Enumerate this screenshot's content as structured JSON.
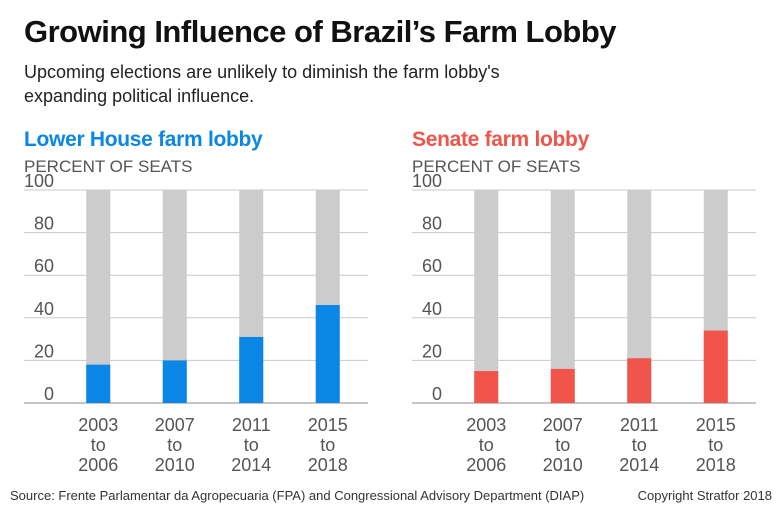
{
  "header": {
    "title": "Growing Influence of Brazil’s Farm Lobby",
    "subtitle": "Upcoming elections are unlikely to diminish the farm lobby's expanding political influence."
  },
  "chart_data": [
    {
      "type": "bar",
      "title": "Lower House farm lobby",
      "ylabel": "PERCENT OF SEATS",
      "categories": [
        [
          "2003",
          "to",
          "2006"
        ],
        [
          "2007",
          "to",
          "2010"
        ],
        [
          "2011",
          "to",
          "2014"
        ],
        [
          "2015",
          "to",
          "2018"
        ]
      ],
      "values": [
        18,
        20,
        31,
        46
      ],
      "ylim": [
        0,
        100
      ],
      "yticks": [
        0,
        20,
        40,
        60,
        80,
        100
      ],
      "bar_color": "#0a87e6",
      "background_bar_color": "#cccccc",
      "title_color": "#0a87e6"
    },
    {
      "type": "bar",
      "title": "Senate farm lobby",
      "ylabel": "PERCENT OF SEATS",
      "categories": [
        [
          "2003",
          "to",
          "2006"
        ],
        [
          "2007",
          "to",
          "2010"
        ],
        [
          "2011",
          "to",
          "2014"
        ],
        [
          "2015",
          "to",
          "2018"
        ]
      ],
      "values": [
        15,
        16,
        21,
        34
      ],
      "ylim": [
        0,
        100
      ],
      "yticks": [
        0,
        20,
        40,
        60,
        80,
        100
      ],
      "bar_color": "#f0544a",
      "background_bar_color": "#cccccc",
      "title_color": "#f0544a"
    }
  ],
  "footer": {
    "source": "Source: Frente Parlamentar da Agropecuaria (FPA) and Congressional Advisory Department (DIAP)",
    "copyright": "Copyright Stratfor 2018"
  }
}
